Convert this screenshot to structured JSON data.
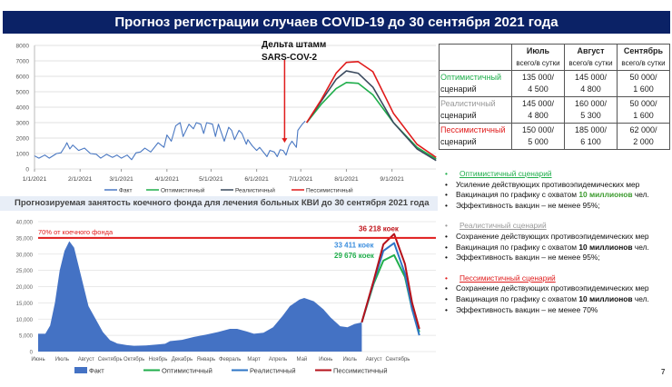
{
  "title": "Прогноз регистрации случаев COVID-19 до 30 сентября 2021 года",
  "table": {
    "headers": [
      {
        "month": "Июль",
        "sub": "всего/в сутки"
      },
      {
        "month": "Август",
        "sub": "всего/в сутки"
      },
      {
        "month": "Сентябрь",
        "sub": "всего/в сутки"
      }
    ],
    "rows": [
      {
        "name": "Оптимистичный",
        "suffix": "сценарий",
        "color": "#1fae4b",
        "cells": [
          [
            "135 000/",
            "4 500"
          ],
          [
            "145 000/",
            "4 800"
          ],
          [
            "50 000/",
            "1 600"
          ]
        ]
      },
      {
        "name": "Реалистичный",
        "suffix": "сценарий",
        "color": "#999999",
        "cells": [
          [
            "145 000/",
            "4 800"
          ],
          [
            "160 000/",
            "5 300"
          ],
          [
            "50 000/",
            "1 600"
          ]
        ]
      },
      {
        "name": "Пессимистичный",
        "suffix": "сценарий",
        "color": "#e01b1b",
        "cells": [
          [
            "150 000/",
            "5 000"
          ],
          [
            "185 000/",
            "6 100"
          ],
          [
            "62 000/",
            "2 000"
          ]
        ]
      }
    ]
  },
  "scenarios": [
    {
      "title": "Оптимистичный сценарий",
      "color": "#1fae4b",
      "lines": [
        [
          "Усиление действующих противоэпидемических мер"
        ],
        [
          "Вакцинация по графику с охватом ",
          "10 миллионов",
          " чел."
        ],
        [
          "Эффективность вакцин – не менее 95%;"
        ]
      ],
      "bold_color": "#3d9b2f"
    },
    {
      "title": "Реалистичный сценарий",
      "color": "#999999",
      "lines": [
        [
          "Сохранение действующих противоэпидемических мер"
        ],
        [
          "Вакцинация по графику с охватом ",
          "10 миллионов",
          " чел."
        ],
        [
          "Эффективность вакцин – не менее 95%;"
        ]
      ],
      "bold_color": "#111111"
    },
    {
      "title": "Пессимистичный сценарий",
      "color": "#e01b1b",
      "lines": [
        [
          "Сохранение действующих противоэпидемических мер"
        ],
        [
          "Вакцинация по графику с охватом ",
          "10 миллионов",
          " чел."
        ],
        [
          "Эффективность вакцин – не менее 70%"
        ]
      ],
      "bold_color": "#111111"
    }
  ],
  "page_number": "7",
  "chart_data": [
    {
      "type": "line",
      "title": "",
      "xunit": "day of 2021 (0 = 1/1/2021)",
      "ylim": [
        0,
        8000
      ],
      "yticks": [
        0,
        1000,
        2000,
        3000,
        4000,
        5000,
        6000,
        7000,
        8000
      ],
      "xticks": [
        {
          "day": 0,
          "label": "1/1/2021"
        },
        {
          "day": 31,
          "label": "2/1/2021"
        },
        {
          "day": 59,
          "label": "3/1/2021"
        },
        {
          "day": 90,
          "label": "4/1/2021"
        },
        {
          "day": 120,
          "label": "5/1/2021"
        },
        {
          "day": 151,
          "label": "6/1/2021"
        },
        {
          "day": 181,
          "label": "7/1/2021"
        },
        {
          "day": 212,
          "label": "8/1/2021"
        },
        {
          "day": 243,
          "label": "9/1/2021"
        }
      ],
      "annotation": {
        "text": [
          "Дельта штамм",
          "SARS-COV-2"
        ],
        "day": 170,
        "value": 1700,
        "color": "#e01b1b"
      },
      "legend_position": "bottom",
      "grid": true,
      "series": [
        {
          "name": "Факт",
          "color": "#4a78c2",
          "x": [
            0,
            3,
            7,
            10,
            15,
            18,
            21,
            22,
            24,
            26,
            30,
            34,
            38,
            42,
            45,
            49,
            53,
            56,
            59,
            63,
            66,
            69,
            72,
            75,
            79,
            84,
            88,
            90,
            93,
            96,
            99,
            101,
            105,
            108,
            110,
            113,
            115,
            117,
            121,
            123,
            125,
            129,
            132,
            134,
            136,
            139,
            141,
            144,
            145,
            148,
            151,
            153,
            158,
            160,
            163,
            165,
            167,
            169,
            171,
            173,
            175,
            178,
            179,
            182,
            184
          ],
          "y": [
            850,
            700,
            900,
            700,
            1000,
            1050,
            1500,
            1700,
            1300,
            1550,
            1200,
            1350,
            1000,
            950,
            700,
            950,
            750,
            900,
            700,
            900,
            600,
            1050,
            1100,
            1350,
            1100,
            1700,
            1400,
            2200,
            1800,
            2800,
            3000,
            2100,
            2900,
            2600,
            3000,
            2900,
            2300,
            3000,
            2900,
            2100,
            2900,
            1800,
            2700,
            2500,
            1900,
            2500,
            2300,
            1600,
            1900,
            1500,
            1200,
            1400,
            800,
            1200,
            1100,
            800,
            1250,
            1200,
            900,
            1500,
            1800,
            1400,
            2500,
            2900,
            3100
          ]
        },
        {
          "name": "Оптимистичный",
          "color": "#1fae4b",
          "x": [
            185,
            195,
            205,
            212,
            220,
            230,
            244,
            260,
            273
          ],
          "y": [
            3000,
            4200,
            5200,
            5600,
            5550,
            4800,
            3000,
            1400,
            650
          ]
        },
        {
          "name": "Реалистичный",
          "color": "#3b4a5e",
          "x": [
            185,
            195,
            205,
            212,
            220,
            230,
            244,
            260,
            273
          ],
          "y": [
            3000,
            4400,
            5800,
            6350,
            6200,
            5300,
            3000,
            1300,
            550
          ]
        },
        {
          "name": "Пессимистичный",
          "color": "#e01b1b",
          "x": [
            185,
            195,
            205,
            212,
            220,
            230,
            244,
            260,
            273
          ],
          "y": [
            3000,
            4500,
            6200,
            6900,
            6950,
            6300,
            3600,
            1600,
            750
          ]
        }
      ]
    },
    {
      "type": "area",
      "title": "Прогнозируемая занятость коечного фонда для лечения больных КВИ до 30 сентября 2021 года",
      "xunit": "months since June 2020",
      "ylim": [
        0,
        40000
      ],
      "yticks": [
        {
          "v": 0,
          "label": "0"
        },
        {
          "v": 5000,
          "label": "5,000"
        },
        {
          "v": 10000,
          "label": "10,000"
        },
        {
          "v": 15000,
          "label": "15,000"
        },
        {
          "v": 20000,
          "label": "20,000"
        },
        {
          "v": 25000,
          "label": "25,000"
        },
        {
          "v": 30000,
          "label": "30,000"
        },
        {
          "v": 35000,
          "label": "35,000"
        },
        {
          "v": 40000,
          "label": "40,000"
        }
      ],
      "xticks": [
        "Июнь",
        "Июль",
        "Август",
        "Сентябрь",
        "Октябрь",
        "Ноябрь",
        "Декабрь",
        "Январь",
        "Февраль",
        "Март",
        "Апрель",
        "Май",
        "Июнь",
        "Июль",
        "Август",
        "Сентябрь"
      ],
      "threshold": {
        "value": 35000,
        "label": "70% от коечного фонда",
        "color": "#e01b1b"
      },
      "peak_labels": [
        {
          "text": "36 218 коек",
          "value": 36218,
          "color": "#c0141b"
        },
        {
          "text": "33 411 коек",
          "value": 33411,
          "color": "#3b8ede"
        },
        {
          "text": "29 676 коек",
          "value": 29676,
          "color": "#1fae4b"
        }
      ],
      "legend_position": "bottom",
      "grid": true,
      "series": [
        {
          "name": "Факт",
          "color": "#4472c4",
          "kind": "area",
          "x": [
            0,
            0.3,
            0.5,
            0.7,
            0.9,
            1.1,
            1.3,
            1.5,
            1.7,
            1.9,
            2.1,
            2.4,
            2.7,
            3.0,
            3.3,
            3.7,
            4.0,
            4.5,
            5.0,
            5.3,
            5.5,
            6.0,
            6.5,
            7.0,
            7.5,
            8.0,
            8.3,
            8.7,
            9.0,
            9.4,
            9.8,
            10.2,
            10.5,
            10.9,
            11.1,
            11.5,
            11.9,
            12.2,
            12.6,
            12.9,
            13.2,
            13.5
          ],
          "y": [
            5500,
            5500,
            8000,
            15000,
            25000,
            31000,
            34000,
            32000,
            26000,
            20000,
            14000,
            10000,
            6000,
            3500,
            2500,
            2000,
            1800,
            1900,
            2200,
            2400,
            3200,
            3600,
            4500,
            5200,
            6000,
            7000,
            7000,
            6200,
            5500,
            5800,
            7500,
            11000,
            14000,
            16000,
            16500,
            15500,
            13000,
            10500,
            7800,
            7500,
            8500,
            9000
          ]
        },
        {
          "name": "Оптимистичный",
          "color": "#1fae4b",
          "kind": "line",
          "x": [
            13.5,
            14,
            14.4,
            14.85,
            15.3,
            15.6,
            15.9
          ],
          "y": [
            9000,
            21000,
            28000,
            29676,
            23000,
            13000,
            6000
          ]
        },
        {
          "name": "Реалистичный",
          "color": "#2e75c6",
          "kind": "line",
          "x": [
            13.5,
            14,
            14.4,
            14.85,
            15.3,
            15.6,
            15.9
          ],
          "y": [
            9000,
            21500,
            31000,
            33411,
            24000,
            13000,
            5000
          ]
        },
        {
          "name": "Пессимистичный",
          "color": "#b5121b",
          "kind": "line",
          "x": [
            13.5,
            14,
            14.4,
            14.85,
            15.3,
            15.6,
            15.9
          ],
          "y": [
            9000,
            22000,
            33000,
            36218,
            27000,
            15000,
            7000
          ]
        }
      ]
    }
  ]
}
